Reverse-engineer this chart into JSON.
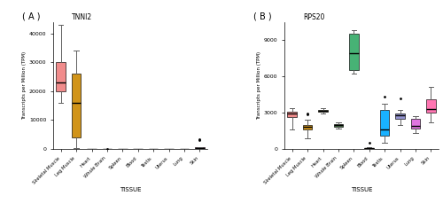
{
  "tissues": [
    "Skeletal Muscle",
    "Leg Muscle",
    "Heart",
    "Whole Brain",
    "Spleen",
    "Blood",
    "Testis",
    "Uterus",
    "Lung",
    "Skin"
  ],
  "panel_A": {
    "title": "TNNI2",
    "ylabel": "Transcripts per Million (TPM)",
    "xlabel": "TISSUE",
    "ylim": [
      0,
      44000
    ],
    "yticks": [
      0,
      10000,
      20000,
      30000,
      40000
    ],
    "boxes": [
      {
        "q1": 20000,
        "median": 23000,
        "q3": 30000,
        "whislo": 16000,
        "whishi": 43000,
        "fliers": []
      },
      {
        "q1": 4000,
        "median": 16000,
        "q3": 26000,
        "whislo": 300,
        "whishi": 34000,
        "fliers": []
      },
      {
        "q1": 0,
        "median": 20,
        "q3": 50,
        "whislo": 0,
        "whishi": 80,
        "fliers": []
      },
      {
        "q1": 0,
        "median": 15,
        "q3": 30,
        "whislo": 0,
        "whishi": 60,
        "fliers": [
          120
        ]
      },
      {
        "q1": 0,
        "median": 10,
        "q3": 20,
        "whislo": 0,
        "whishi": 40,
        "fliers": []
      },
      {
        "q1": 0,
        "median": 15,
        "q3": 30,
        "whislo": 0,
        "whishi": 55,
        "fliers": []
      },
      {
        "q1": 0,
        "median": 15,
        "q3": 30,
        "whislo": 0,
        "whishi": 55,
        "fliers": []
      },
      {
        "q1": 0,
        "median": 15,
        "q3": 30,
        "whislo": 0,
        "whishi": 55,
        "fliers": []
      },
      {
        "q1": 0,
        "median": 15,
        "q3": 30,
        "whislo": 0,
        "whishi": 55,
        "fliers": []
      },
      {
        "q1": 200,
        "median": 380,
        "q3": 580,
        "whislo": 0,
        "whishi": 700,
        "fliers": [
          3100,
          3400
        ]
      }
    ],
    "box_colors": [
      "#F08080",
      "#CC8800",
      "#B0B0B0",
      "#B0B0B0",
      "#B0B0B0",
      "#B0B0B0",
      "#B0B0B0",
      "#B0B0B0",
      "#B0B0B0",
      "#CC6699"
    ]
  },
  "panel_B": {
    "title": "RPS20",
    "ylabel": "Transcripts per Million (TPM)",
    "xlabel": "TISSUE",
    "ylim": [
      0,
      10500
    ],
    "yticks": [
      0,
      3000,
      6000,
      9000
    ],
    "boxes": [
      {
        "q1": 2600,
        "median": 2900,
        "q3": 3100,
        "whislo": 1600,
        "whishi": 3400,
        "fliers": []
      },
      {
        "q1": 1600,
        "median": 1800,
        "q3": 2000,
        "whislo": 900,
        "whishi": 2400,
        "fliers": [
          2850,
          2950
        ]
      },
      {
        "q1": 3050,
        "median": 3150,
        "q3": 3250,
        "whislo": 2900,
        "whishi": 3380,
        "fliers": []
      },
      {
        "q1": 1850,
        "median": 1950,
        "q3": 2050,
        "whislo": 1700,
        "whishi": 2200,
        "fliers": []
      },
      {
        "q1": 6500,
        "median": 7900,
        "q3": 9500,
        "whislo": 6200,
        "whishi": 9800,
        "fliers": []
      },
      {
        "q1": 20,
        "median": 50,
        "q3": 80,
        "whislo": 0,
        "whishi": 150,
        "fliers": [
          520
        ]
      },
      {
        "q1": 1100,
        "median": 1600,
        "q3": 3200,
        "whislo": 500,
        "whishi": 3700,
        "fliers": [
          4300
        ]
      },
      {
        "q1": 2500,
        "median": 2750,
        "q3": 2950,
        "whislo": 2000,
        "whishi": 3200,
        "fliers": [
          4200
        ]
      },
      {
        "q1": 1700,
        "median": 1900,
        "q3": 2500,
        "whislo": 1300,
        "whishi": 2700,
        "fliers": []
      },
      {
        "q1": 3000,
        "median": 3300,
        "q3": 4100,
        "whislo": 2200,
        "whishi": 5100,
        "fliers": []
      }
    ],
    "box_colors": [
      "#F08080",
      "#CC8800",
      "#808040",
      "#336633",
      "#33AA66",
      "#808040",
      "#00AAFF",
      "#8888CC",
      "#DD66DD",
      "#FF66AA"
    ]
  }
}
